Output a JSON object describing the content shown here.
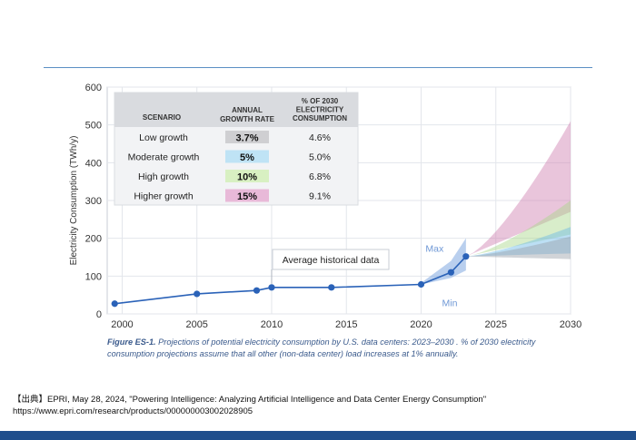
{
  "chart_data": {
    "type": "line",
    "ylabel": "Electricity Consumption (TWh/y)",
    "xlabel": "",
    "xlim": [
      1999,
      2030
    ],
    "ylim": [
      0,
      600
    ],
    "x_ticks": [
      2000,
      2005,
      2010,
      2015,
      2020,
      2025,
      2030
    ],
    "y_ticks": [
      0,
      100,
      200,
      300,
      400,
      500,
      600
    ],
    "grid": true,
    "historical": {
      "x": [
        1999.5,
        2005,
        2009,
        2010,
        2014,
        2020,
        2022,
        2023
      ],
      "y": [
        27,
        53,
        62,
        70,
        70,
        78,
        110,
        152
      ]
    },
    "historical_band": {
      "x": [
        2020,
        2022,
        2023
      ],
      "max": [
        82,
        140,
        200
      ],
      "min": [
        78,
        95,
        115
      ]
    },
    "projections": [
      {
        "name": "Low growth",
        "color": "#9aa0a8",
        "x": [
          2023,
          2030
        ],
        "low": [
          152,
          145
        ],
        "high": [
          152,
          205
        ]
      },
      {
        "name": "Moderate growth",
        "color": "#6ab8e6",
        "x": [
          2023,
          2030
        ],
        "low": [
          152,
          160
        ],
        "high": [
          152,
          230
        ]
      },
      {
        "name": "High growth",
        "color": "#a8d88a",
        "x": [
          2023,
          2030
        ],
        "low": [
          152,
          210
        ],
        "high": [
          152,
          300
        ]
      },
      {
        "name": "Higher growth",
        "color": "#cf7fb0",
        "x": [
          2023,
          2030
        ],
        "low": [
          152,
          270
        ],
        "high": [
          152,
          510
        ]
      }
    ],
    "annotations": {
      "max_label": "Max",
      "min_label": "Min",
      "avg_label": "Average historical data"
    },
    "table": {
      "headers": [
        "SCENARIO",
        "ANNUAL GROWTH RATE",
        "% OF 2030 ELECTRICITY CONSUMPTION"
      ],
      "rows": [
        {
          "scenario": "Low growth",
          "rate": "3.7%",
          "share": "4.6%",
          "color": "#cfcfd2"
        },
        {
          "scenario": "Moderate growth",
          "rate": "5%",
          "share": "5.0%",
          "color": "#bfe3f5"
        },
        {
          "scenario": "High growth",
          "rate": "10%",
          "share": "6.8%",
          "color": "#d8f0c2"
        },
        {
          "scenario": "Higher growth",
          "rate": "15%",
          "share": "9.1%",
          "color": "#e8b9d8"
        }
      ]
    }
  },
  "caption": {
    "fig": "Figure ES-1.",
    "text": " Projections of potential electricity consumption by U.S. data centers: 2023–2030 . % of 2030 electricity consumption projections assume that all other (non-data center) load increases at 1% annually."
  },
  "source": {
    "line1": "【出典】EPRI, May 28, 2024, \"Powering Intelligence: Analyzing Artificial Intelligence and Data Center Energy Consumption\"",
    "line2": "https://www.epri.com/research/products/000000003002028905"
  }
}
